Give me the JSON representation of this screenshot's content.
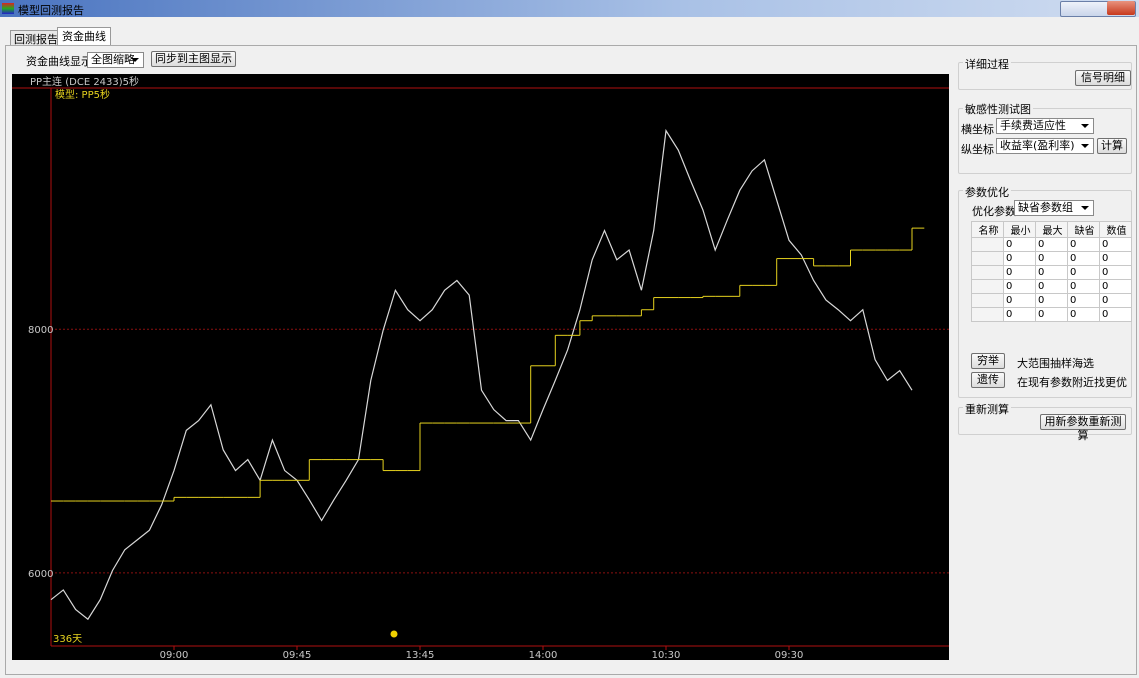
{
  "window": {
    "title": "模型回测报告"
  },
  "tabs": [
    "回测报告",
    "资金曲线"
  ],
  "toolbar": {
    "label": "资金曲线显示",
    "select": "全图缩略",
    "button": "同步到主图显示"
  },
  "chart_data": {
    "type": "line",
    "header": "PP主连  (DCE 2433)5秒",
    "model_label": "模型: PP5秒",
    "days_label": "336天",
    "categories": [
      null,
      null,
      null,
      null,
      null,
      null,
      null,
      null,
      null,
      null,
      "09:00",
      null,
      null,
      null,
      null,
      null,
      null,
      null,
      null,
      null,
      "09:45",
      null,
      null,
      null,
      null,
      null,
      null,
      null,
      null,
      null,
      "13:45",
      null,
      null,
      null,
      null,
      null,
      null,
      null,
      null,
      null,
      "14:00",
      null,
      null,
      null,
      null,
      null,
      null,
      null,
      null,
      null,
      "10:30",
      null,
      null,
      null,
      null,
      null,
      null,
      null,
      null,
      null,
      "09:30",
      null,
      null,
      null,
      null,
      null,
      null,
      null,
      null,
      null,
      null
    ],
    "series": [
      {
        "color": "#d8d8d8",
        "values": [
          5780,
          5860,
          5700,
          5620,
          5780,
          6020,
          6190,
          6270,
          6350,
          6560,
          6840,
          7170,
          7250,
          7380,
          7010,
          6840,
          6930,
          6760,
          7090,
          6840,
          6760,
          6600,
          6430,
          6600,
          6760,
          6930,
          7580,
          7990,
          8320,
          8160,
          8070,
          8160,
          8320,
          8400,
          8280,
          7500,
          7340,
          7250,
          7250,
          7090,
          7340,
          7580,
          7830,
          8160,
          8570,
          8810,
          8570,
          8650,
          8320,
          8810,
          9630,
          9470,
          9220,
          8980,
          8650,
          8900,
          9140,
          9300,
          9390,
          9060,
          8730,
          8610,
          8400,
          8240,
          8160,
          8070,
          8160,
          7750,
          7580,
          7660,
          7500
        ]
      },
      {
        "color": "#e6d21e",
        "values": [
          6590,
          6590,
          6590,
          6590,
          6590,
          6590,
          6590,
          6590,
          6590,
          6590,
          6620,
          6620,
          6620,
          6620,
          6620,
          6620,
          6620,
          6760,
          6760,
          6760,
          6760,
          6930,
          6930,
          6930,
          6930,
          6930,
          6930,
          6840,
          6840,
          6840,
          7230,
          7230,
          7230,
          7230,
          7230,
          7230,
          7230,
          7230,
          7230,
          7700,
          7700,
          7950,
          7950,
          8070,
          8110,
          8110,
          8110,
          8110,
          8160,
          8260,
          8260,
          8260,
          8260,
          8270,
          8270,
          8270,
          8360,
          8360,
          8360,
          8580,
          8580,
          8580,
          8520,
          8520,
          8520,
          8650,
          8650,
          8650,
          8650,
          8650,
          8830
        ]
      }
    ],
    "ylim": [
      5400,
      9980
    ],
    "yticks": [
      6000,
      8000
    ],
    "grid": true
  },
  "panel": {
    "detail": {
      "title": "详细过程",
      "button": "信号明细"
    },
    "sensitivity": {
      "title": "敏感性测试图",
      "x_label": "横坐标",
      "x_select": "手续费适应性",
      "y_label": "纵坐标",
      "y_select": "收益率(盈利率)",
      "button": "计算"
    },
    "optimize": {
      "title": "参数优化",
      "label": "优化参数",
      "select": "缺省参数组",
      "columns": [
        "名称",
        "最小",
        "最大",
        "缺省",
        "数值"
      ],
      "rows": [
        {
          "min": 0,
          "max": 0,
          "default": 0,
          "value": 0
        },
        {
          "min": 0,
          "max": 0,
          "default": 0,
          "value": 0
        },
        {
          "min": 0,
          "max": 0,
          "default": 0,
          "value": 0
        },
        {
          "min": 0,
          "max": 0,
          "default": 0,
          "value": 0
        },
        {
          "min": 0,
          "max": 0,
          "default": 0,
          "value": 0
        },
        {
          "min": 0,
          "max": 0,
          "default": 0,
          "value": 0
        }
      ],
      "exhaustive": {
        "button": "穷举",
        "text": "大范围抽样海选"
      },
      "genetic": {
        "button": "遗传",
        "text": "在现有参数附近找更优"
      }
    },
    "recalc": {
      "title": "重新测算",
      "button": "用新参数重新测算"
    }
  }
}
